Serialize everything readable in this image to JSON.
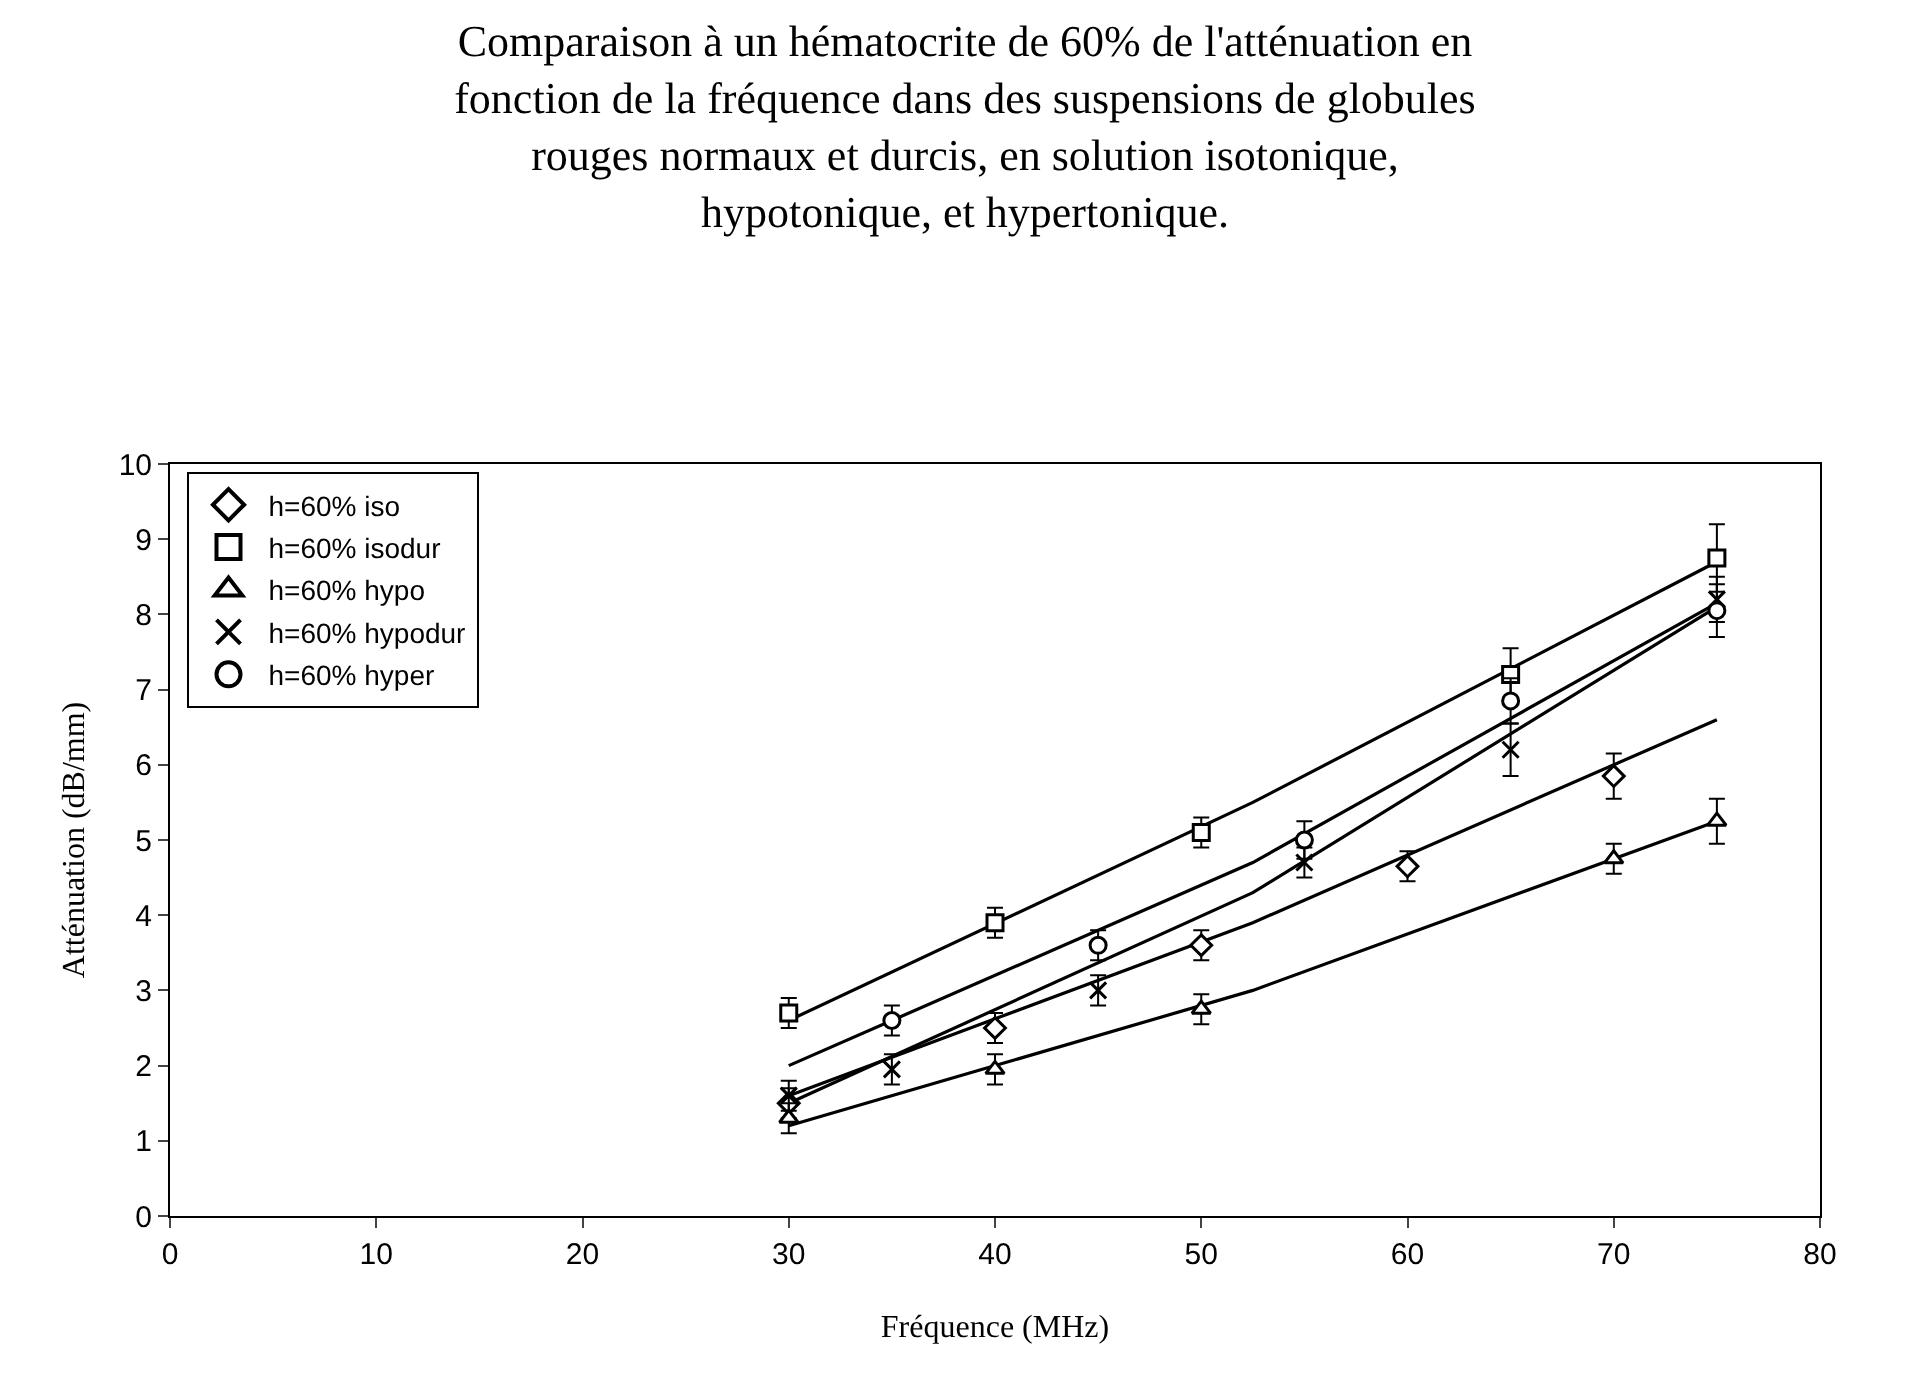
{
  "chart_data": {
    "type": "scatter",
    "title": "Comparaison à un hématocrite de 60% de l'atténuation en\nfonction de la fréquence dans des suspensions de globules\nrouges normaux et durcis, en solution isotonique,\nhypotonique, et hypertonique.",
    "xlabel": "Fréquence (MHz)",
    "ylabel": "Atténuation (dB/mm)",
    "xlim": [
      0,
      80
    ],
    "xticks": [
      0,
      10,
      20,
      30,
      40,
      50,
      60,
      70,
      80
    ],
    "ylim": [
      0,
      10
    ],
    "yticks": [
      0,
      1,
      2,
      3,
      4,
      5,
      6,
      7,
      8,
      9,
      10
    ],
    "legend": "top left",
    "series": [
      {
        "name": "h=60% iso",
        "color": "#000000",
        "marker": "diamond",
        "x": [
          30,
          40,
          50,
          60,
          70
        ],
        "values": [
          1.5,
          2.5,
          3.6,
          4.65,
          5.85
        ],
        "errors": [
          0.2,
          0.2,
          0.2,
          0.2,
          0.3
        ]
      },
      {
        "name": "h=60% isodur",
        "color": "#000000",
        "marker": "square",
        "x": [
          30,
          40,
          50,
          65,
          75
        ],
        "values": [
          2.7,
          3.9,
          5.1,
          7.2,
          8.75
        ],
        "errors": [
          0.2,
          0.2,
          0.2,
          0.35,
          0.45
        ]
      },
      {
        "name": "h=60% hypo",
        "color": "#000000",
        "marker": "triangle",
        "x": [
          30,
          40,
          50,
          70,
          75
        ],
        "values": [
          1.3,
          1.95,
          2.75,
          4.75,
          5.25
        ],
        "errors": [
          0.2,
          0.2,
          0.2,
          0.2,
          0.3
        ]
      },
      {
        "name": "h=60% hypodur",
        "color": "#000000",
        "marker": "cross",
        "x": [
          30,
          35,
          45,
          55,
          65,
          75
        ],
        "values": [
          1.6,
          1.95,
          3.0,
          4.7,
          6.2,
          8.2
        ],
        "errors": [
          0.2,
          0.2,
          0.2,
          0.2,
          0.35,
          0.3
        ]
      },
      {
        "name": "h=60% hyper",
        "color": "#000000",
        "marker": "circle",
        "x": [
          35,
          45,
          55,
          65,
          75
        ],
        "values": [
          2.6,
          3.6,
          5.0,
          6.85,
          8.05
        ],
        "errors": [
          0.2,
          0.2,
          0.25,
          0.3,
          0.35
        ]
      },
      {
        "type": "line",
        "color": "#000000",
        "x": [
          30,
          52.5,
          75
        ],
        "values": [
          1.6,
          3.9,
          6.6
        ]
      },
      {
        "type": "line",
        "color": "#000000",
        "x": [
          30,
          52.5,
          75
        ],
        "values": [
          2.6,
          5.5,
          8.7
        ]
      },
      {
        "type": "line",
        "color": "#000000",
        "x": [
          30,
          52.5,
          75
        ],
        "values": [
          1.2,
          3.0,
          5.25
        ]
      },
      {
        "type": "line",
        "color": "#000000",
        "x": [
          30,
          52.5,
          75
        ],
        "values": [
          1.5,
          4.3,
          8.1
        ]
      },
      {
        "type": "line",
        "color": "#000000",
        "x": [
          30,
          52.5,
          75
        ],
        "values": [
          2.0,
          4.7,
          8.15
        ]
      }
    ]
  }
}
